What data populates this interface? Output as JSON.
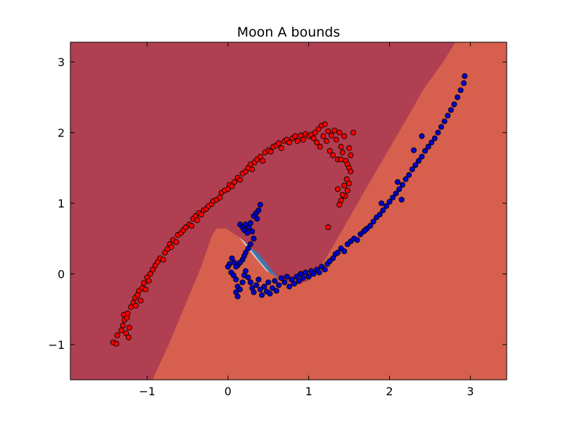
{
  "chart_data": {
    "type": "scatter",
    "title": "Moon A bounds",
    "xlabel": "",
    "ylabel": "",
    "xlim": [
      -1.95,
      3.45
    ],
    "ylim": [
      -1.5,
      3.28
    ],
    "grid": false,
    "x_ticks": [
      -1,
      0,
      1,
      2,
      3
    ],
    "x_tick_labels": [
      "−1",
      "0",
      "1",
      "2",
      "3"
    ],
    "y_ticks": [
      -1,
      0,
      1,
      2,
      3
    ],
    "y_tick_labels": [
      "−1",
      "0",
      "1",
      "2",
      "3"
    ],
    "colors": {
      "region_red": "#b03f52",
      "region_blue": "#4575a8",
      "band_red": [
        "#d6604d",
        "#f4a582",
        "#fddbc7"
      ],
      "band_blue": [
        "#d1e5f0",
        "#92c5de",
        "#6fa6cf"
      ],
      "point_red": "#ff0000",
      "point_blue": "#0000cc"
    },
    "series": [
      {
        "color": "red",
        "points": [
          [
            -1.42,
            -0.97
          ],
          [
            -1.38,
            -0.99
          ],
          [
            -1.37,
            -0.87
          ],
          [
            -1.32,
            -0.8
          ],
          [
            -1.3,
            -0.73
          ],
          [
            -1.28,
            -0.65
          ],
          [
            -1.29,
            -0.58
          ],
          [
            -1.25,
            -0.62
          ],
          [
            -1.24,
            -0.56
          ],
          [
            -1.26,
            -0.84
          ],
          [
            -1.23,
            -0.9
          ],
          [
            -1.22,
            -0.76
          ],
          [
            -1.2,
            -0.47
          ],
          [
            -1.17,
            -0.41
          ],
          [
            -1.15,
            -0.34
          ],
          [
            -1.12,
            -0.3
          ],
          [
            -1.1,
            -0.24
          ],
          [
            -1.14,
            -0.45
          ],
          [
            -1.08,
            -0.38
          ],
          [
            -1.06,
            -0.2
          ],
          [
            -1.04,
            -0.13
          ],
          [
            -1.02,
            -0.22
          ],
          [
            -1.0,
            -0.05
          ],
          [
            -0.98,
            -0.1
          ],
          [
            -0.96,
            0.0
          ],
          [
            -0.93,
            0.06
          ],
          [
            -0.9,
            0.12
          ],
          [
            -0.87,
            0.17
          ],
          [
            -0.84,
            0.22
          ],
          [
            -0.8,
            0.2
          ],
          [
            -0.78,
            0.3
          ],
          [
            -0.75,
            0.35
          ],
          [
            -0.72,
            0.42
          ],
          [
            -0.7,
            0.38
          ],
          [
            -0.68,
            0.48
          ],
          [
            -0.64,
            0.45
          ],
          [
            -0.62,
            0.55
          ],
          [
            -0.58,
            0.58
          ],
          [
            -0.55,
            0.62
          ],
          [
            -0.52,
            0.66
          ],
          [
            -0.48,
            0.7
          ],
          [
            -0.45,
            0.68
          ],
          [
            -0.43,
            0.78
          ],
          [
            -0.4,
            0.82
          ],
          [
            -0.38,
            0.76
          ],
          [
            -0.36,
            0.86
          ],
          [
            -0.33,
            0.84
          ],
          [
            -0.3,
            0.9
          ],
          [
            -0.27,
            0.92
          ],
          [
            -0.24,
            0.96
          ],
          [
            -0.2,
            0.99
          ],
          [
            -0.18,
            1.03
          ],
          [
            -0.14,
            1.05
          ],
          [
            -0.1,
            1.08
          ],
          [
            -0.08,
            1.15
          ],
          [
            -0.04,
            1.18
          ],
          [
            0.0,
            1.2
          ],
          [
            0.02,
            1.26
          ],
          [
            0.05,
            1.24
          ],
          [
            0.08,
            1.3
          ],
          [
            0.12,
            1.36
          ],
          [
            0.15,
            1.33
          ],
          [
            0.18,
            1.42
          ],
          [
            0.22,
            1.45
          ],
          [
            0.25,
            1.5
          ],
          [
            0.28,
            1.55
          ],
          [
            0.3,
            1.48
          ],
          [
            0.33,
            1.58
          ],
          [
            0.36,
            1.62
          ],
          [
            0.4,
            1.66
          ],
          [
            0.43,
            1.6
          ],
          [
            0.46,
            1.72
          ],
          [
            0.5,
            1.75
          ],
          [
            0.53,
            1.73
          ],
          [
            0.56,
            1.8
          ],
          [
            0.6,
            1.82
          ],
          [
            0.63,
            1.85
          ],
          [
            0.66,
            1.78
          ],
          [
            0.7,
            1.88
          ],
          [
            0.73,
            1.9
          ],
          [
            0.76,
            1.86
          ],
          [
            0.8,
            1.92
          ],
          [
            0.83,
            1.95
          ],
          [
            0.86,
            1.88
          ],
          [
            0.9,
            1.96
          ],
          [
            0.93,
            1.9
          ],
          [
            0.96,
            1.98
          ],
          [
            1.0,
            1.95
          ],
          [
            1.03,
            1.97
          ],
          [
            1.06,
            1.92
          ],
          [
            1.08,
            2.0
          ],
          [
            1.1,
            1.86
          ],
          [
            1.12,
            2.05
          ],
          [
            1.14,
            1.8
          ],
          [
            1.16,
            2.1
          ],
          [
            1.18,
            1.95
          ],
          [
            1.2,
            2.12
          ],
          [
            1.22,
            1.88
          ],
          [
            1.24,
            2.02
          ],
          [
            1.26,
            1.74
          ],
          [
            1.28,
            1.96
          ],
          [
            1.3,
            1.68
          ],
          [
            1.32,
            2.03
          ],
          [
            1.34,
            1.9
          ],
          [
            1.36,
            1.62
          ],
          [
            1.38,
            2.0
          ],
          [
            1.4,
            1.8
          ],
          [
            1.42,
            1.72
          ],
          [
            1.44,
            1.95
          ],
          [
            1.46,
            1.6
          ],
          [
            1.48,
            1.55
          ],
          [
            1.5,
            1.5
          ],
          [
            1.52,
            1.45
          ],
          [
            1.47,
            1.34
          ],
          [
            1.5,
            1.28
          ],
          [
            1.44,
            1.25
          ],
          [
            1.48,
            1.18
          ],
          [
            1.45,
            1.1
          ],
          [
            1.4,
            1.04
          ],
          [
            1.38,
            0.98
          ],
          [
            1.42,
            1.12
          ],
          [
            1.36,
            1.2
          ],
          [
            1.4,
            1.62
          ],
          [
            1.52,
            1.68
          ],
          [
            1.55,
            2.0
          ],
          [
            1.5,
            1.78
          ],
          [
            1.24,
            0.66
          ]
        ]
      },
      {
        "color": "blue",
        "points": [
          [
            0.15,
            0.7
          ],
          [
            0.18,
            0.66
          ],
          [
            0.2,
            0.62
          ],
          [
            0.22,
            0.7
          ],
          [
            0.24,
            0.58
          ],
          [
            0.26,
            0.66
          ],
          [
            0.28,
            0.72
          ],
          [
            0.3,
            0.6
          ],
          [
            0.32,
            0.82
          ],
          [
            0.35,
            0.86
          ],
          [
            0.38,
            0.9
          ],
          [
            0.4,
            0.98
          ],
          [
            0.36,
            0.78
          ],
          [
            0.32,
            0.5
          ],
          [
            0.28,
            0.42
          ],
          [
            0.25,
            0.36
          ],
          [
            0.22,
            0.3
          ],
          [
            0.2,
            0.25
          ],
          [
            0.18,
            0.2
          ],
          [
            0.15,
            0.16
          ],
          [
            0.12,
            0.12
          ],
          [
            0.1,
            0.1
          ],
          [
            0.08,
            0.16
          ],
          [
            0.05,
            0.22
          ],
          [
            0.02,
            0.14
          ],
          [
            0.0,
            0.1
          ],
          [
            0.04,
            0.02
          ],
          [
            0.07,
            -0.02
          ],
          [
            0.1,
            -0.08
          ],
          [
            0.12,
            -0.18
          ],
          [
            0.1,
            -0.26
          ],
          [
            0.12,
            -0.32
          ],
          [
            0.15,
            -0.22
          ],
          [
            0.18,
            -0.12
          ],
          [
            0.2,
            -0.02
          ],
          [
            0.22,
            0.04
          ],
          [
            0.25,
            -0.05
          ],
          [
            0.28,
            -0.12
          ],
          [
            0.3,
            -0.2
          ],
          [
            0.32,
            -0.26
          ],
          [
            0.35,
            -0.16
          ],
          [
            0.38,
            -0.08
          ],
          [
            0.4,
            -0.22
          ],
          [
            0.42,
            -0.3
          ],
          [
            0.45,
            -0.18
          ],
          [
            0.48,
            -0.25
          ],
          [
            0.5,
            -0.12
          ],
          [
            0.52,
            -0.28
          ],
          [
            0.55,
            -0.2
          ],
          [
            0.58,
            -0.1
          ],
          [
            0.6,
            -0.24
          ],
          [
            0.63,
            -0.16
          ],
          [
            0.66,
            -0.06
          ],
          [
            0.7,
            -0.12
          ],
          [
            0.73,
            -0.04
          ],
          [
            0.76,
            -0.18
          ],
          [
            0.79,
            -0.08
          ],
          [
            0.82,
            -0.14
          ],
          [
            0.85,
            -0.04
          ],
          [
            0.88,
            -0.1
          ],
          [
            0.9,
            0.0
          ],
          [
            0.93,
            -0.06
          ],
          [
            0.96,
            0.02
          ],
          [
            1.0,
            -0.04
          ],
          [
            1.03,
            0.04
          ],
          [
            1.06,
            0.0
          ],
          [
            1.1,
            0.06
          ],
          [
            1.13,
            0.02
          ],
          [
            1.16,
            0.1
          ],
          [
            1.2,
            0.06
          ],
          [
            1.23,
            0.14
          ],
          [
            1.26,
            0.18
          ],
          [
            1.3,
            0.22
          ],
          [
            1.33,
            0.28
          ],
          [
            1.36,
            0.3
          ],
          [
            1.4,
            0.36
          ],
          [
            1.44,
            0.32
          ],
          [
            1.48,
            0.42
          ],
          [
            1.52,
            0.46
          ],
          [
            1.56,
            0.5
          ],
          [
            1.6,
            0.48
          ],
          [
            1.64,
            0.56
          ],
          [
            1.68,
            0.6
          ],
          [
            1.72,
            0.64
          ],
          [
            1.76,
            0.68
          ],
          [
            1.8,
            0.74
          ],
          [
            1.84,
            0.8
          ],
          [
            1.88,
            0.84
          ],
          [
            1.92,
            0.9
          ],
          [
            1.96,
            0.96
          ],
          [
            2.0,
            1.02
          ],
          [
            2.04,
            1.08
          ],
          [
            2.08,
            1.14
          ],
          [
            2.12,
            1.2
          ],
          [
            2.16,
            1.26
          ],
          [
            2.2,
            1.34
          ],
          [
            2.24,
            1.4
          ],
          [
            2.28,
            1.48
          ],
          [
            2.32,
            1.54
          ],
          [
            2.36,
            1.6
          ],
          [
            2.4,
            1.66
          ],
          [
            2.44,
            1.74
          ],
          [
            2.48,
            1.8
          ],
          [
            2.52,
            1.86
          ],
          [
            2.56,
            1.92
          ],
          [
            2.6,
            2.0
          ],
          [
            2.64,
            2.08
          ],
          [
            2.68,
            2.16
          ],
          [
            2.72,
            2.24
          ],
          [
            2.76,
            2.32
          ],
          [
            2.8,
            2.4
          ],
          [
            2.84,
            2.5
          ],
          [
            2.88,
            2.6
          ],
          [
            2.92,
            2.7
          ],
          [
            2.93,
            2.8
          ],
          [
            2.4,
            1.95
          ],
          [
            2.3,
            1.75
          ],
          [
            2.1,
            1.3
          ],
          [
            2.15,
            1.05
          ],
          [
            1.9,
            1.0
          ],
          [
            1.7,
            0.62
          ]
        ]
      }
    ],
    "boundary_centerline": [
      [
        -0.9,
        -1.5
      ],
      [
        -0.7,
        -1.0
      ],
      [
        -0.5,
        -0.45
      ],
      [
        -0.3,
        0.1
      ],
      [
        -0.18,
        0.5
      ],
      [
        -0.12,
        0.62
      ],
      [
        0.0,
        0.62
      ],
      [
        0.16,
        0.5
      ],
      [
        0.35,
        0.22
      ],
      [
        0.5,
        0.02
      ],
      [
        0.7,
        -0.12
      ],
      [
        0.88,
        -0.18
      ],
      [
        1.02,
        -0.12
      ],
      [
        1.15,
        0.05
      ],
      [
        1.3,
        0.32
      ],
      [
        1.5,
        0.72
      ],
      [
        1.8,
        1.32
      ],
      [
        2.2,
        2.1
      ],
      [
        2.45,
        2.6
      ],
      [
        2.7,
        3.0
      ],
      [
        2.85,
        3.28
      ]
    ]
  }
}
